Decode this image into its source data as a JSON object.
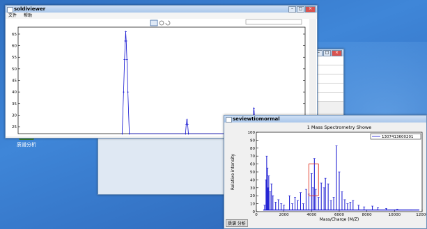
{
  "desktop": {
    "icon_label": "质谱分析"
  },
  "back_window": {},
  "main_window": {
    "title": "soldiviewer",
    "menu": [
      "文件",
      "帮助"
    ],
    "toolbar_icons": [
      "select-icon",
      "gear-icon",
      "refresh-icon"
    ],
    "chart_data": {
      "type": "line",
      "ylim": [
        22,
        68
      ],
      "yticks": [
        25,
        30,
        35,
        40,
        45,
        50,
        55,
        60,
        65
      ],
      "x": [
        4170,
        4182,
        4190,
        4196,
        4200,
        4204,
        4210,
        4218,
        4230,
        4700,
        4706,
        4712,
        4718,
        4724,
        5260,
        5266,
        5272,
        5278,
        5284
      ],
      "series": [
        {
          "values": [
            22,
            40,
            54,
            62,
            66,
            62,
            54,
            40,
            22,
            22,
            26,
            28,
            26,
            22,
            22,
            30,
            33,
            29,
            22
          ]
        }
      ],
      "xlim": [
        3300,
        5700
      ],
      "grid": false
    }
  },
  "spectrum_window": {
    "title": "seviewtiomormal",
    "taskbar_label": "质谱 分析",
    "chart_data": {
      "type": "line",
      "title": "1 Mass Spectrometry Showe",
      "xlabel": "Mass/Charge (M/Z)",
      "ylabel": "Relative intensity",
      "xlim": [
        0,
        12000
      ],
      "ylim": [
        0,
        100
      ],
      "xticks": [
        0,
        2000,
        4000,
        6000,
        8000,
        10000,
        12000
      ],
      "yticks": [
        0,
        10,
        20,
        30,
        40,
        50,
        60,
        70,
        80,
        90,
        100
      ],
      "legend": "1307413600201",
      "legend_position": "top-right",
      "peaks": [
        [
          600,
          8
        ],
        [
          700,
          40
        ],
        [
          750,
          70
        ],
        [
          800,
          55
        ],
        [
          850,
          30
        ],
        [
          900,
          45
        ],
        [
          1000,
          25
        ],
        [
          1100,
          35
        ],
        [
          1200,
          20
        ],
        [
          1400,
          12
        ],
        [
          1600,
          15
        ],
        [
          1800,
          10
        ],
        [
          2000,
          8
        ],
        [
          2400,
          20
        ],
        [
          2600,
          10
        ],
        [
          2800,
          18
        ],
        [
          3000,
          14
        ],
        [
          3200,
          24
        ],
        [
          3400,
          10
        ],
        [
          3600,
          28
        ],
        [
          3800,
          22
        ],
        [
          4000,
          48
        ],
        [
          4100,
          30
        ],
        [
          4200,
          67
        ],
        [
          4300,
          28
        ],
        [
          4500,
          18
        ],
        [
          4700,
          36
        ],
        [
          4900,
          30
        ],
        [
          5000,
          42
        ],
        [
          5200,
          35
        ],
        [
          5400,
          14
        ],
        [
          5600,
          18
        ],
        [
          5800,
          83
        ],
        [
          6000,
          50
        ],
        [
          6200,
          25
        ],
        [
          6400,
          15
        ],
        [
          6600,
          10
        ],
        [
          6800,
          12
        ],
        [
          7000,
          14
        ],
        [
          7400,
          8
        ],
        [
          7800,
          6
        ],
        [
          8400,
          7
        ],
        [
          8800,
          5
        ],
        [
          9400,
          4
        ],
        [
          10200,
          3
        ],
        [
          11200,
          2
        ]
      ],
      "highlight_box": [
        3800,
        4500,
        20,
        60
      ],
      "grid": false
    }
  }
}
